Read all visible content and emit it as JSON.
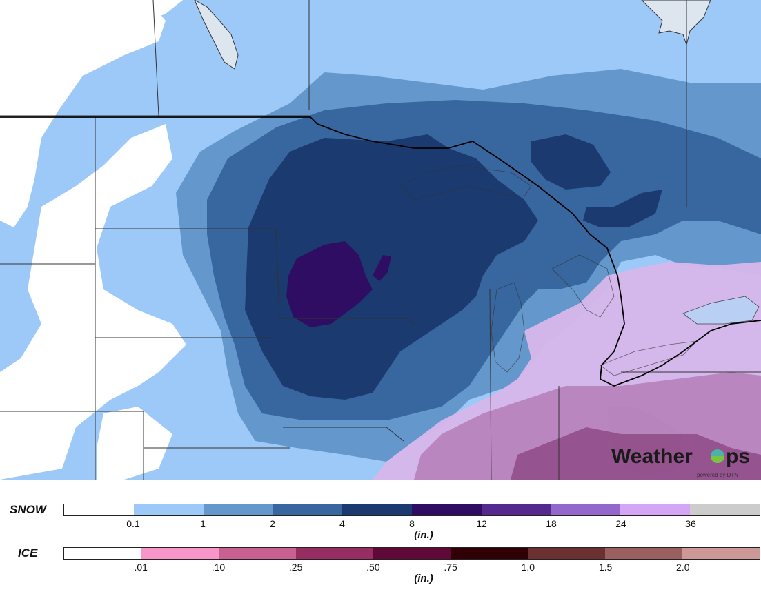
{
  "map": {
    "brand": {
      "name_left": "Weather",
      "name_right": "ps",
      "tagline": "powered by DTN"
    }
  },
  "legend": {
    "snow": {
      "label": "SNOW",
      "unit": "(in.)",
      "ticks": [
        "0.1",
        "1",
        "2",
        "4",
        "8",
        "12",
        "18",
        "24",
        "36"
      ],
      "colors": [
        "#ffffff",
        "#9dc9f8",
        "#6497cc",
        "#38669f",
        "#1a3a70",
        "#2f0d62",
        "#55298e",
        "#9367cb",
        "#d4a6f5",
        "#cccccc"
      ]
    },
    "ice": {
      "label": "ICE",
      "unit": "(in.)",
      "ticks": [
        ".01",
        ".10",
        ".25",
        ".50",
        ".75",
        "1.0",
        "1.5",
        "2.0"
      ],
      "colors": [
        "#ffffff",
        "#f895c9",
        "#c86192",
        "#972e61",
        "#600836",
        "#310006",
        "#6a3032",
        "#9a6060",
        "#cc9898"
      ]
    }
  }
}
